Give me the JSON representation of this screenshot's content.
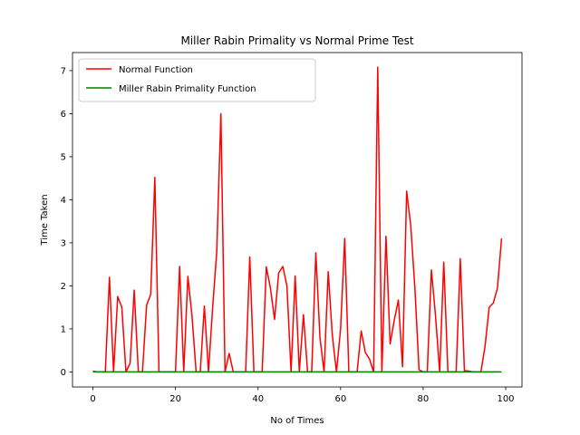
{
  "chart_data": {
    "type": "line",
    "title": "Miller Rabin Primality vs Normal Prime Test",
    "xlabel": "No of Times",
    "ylabel": "Time Taken",
    "xlim": [
      -4.95,
      103.95
    ],
    "ylim": [
      -0.35,
      7.42
    ],
    "xticks": [
      0,
      20,
      40,
      60,
      80,
      100
    ],
    "yticks": [
      0,
      1,
      2,
      3,
      4,
      5,
      6,
      7
    ],
    "legend_position": "upper-left",
    "grid": false,
    "x": [
      0,
      1,
      2,
      3,
      4,
      5,
      6,
      7,
      8,
      9,
      10,
      11,
      12,
      13,
      14,
      15,
      16,
      17,
      18,
      19,
      20,
      21,
      22,
      23,
      24,
      25,
      26,
      27,
      28,
      29,
      30,
      31,
      32,
      33,
      34,
      35,
      36,
      37,
      38,
      39,
      40,
      41,
      42,
      43,
      44,
      45,
      46,
      47,
      48,
      49,
      50,
      51,
      52,
      53,
      54,
      55,
      56,
      57,
      58,
      59,
      60,
      61,
      62,
      63,
      64,
      65,
      66,
      67,
      68,
      69,
      70,
      71,
      72,
      73,
      74,
      75,
      76,
      77,
      78,
      79,
      80,
      81,
      82,
      83,
      84,
      85,
      86,
      87,
      88,
      89,
      90,
      91,
      92,
      93,
      94,
      95,
      96,
      97,
      98,
      99
    ],
    "series": [
      {
        "name": "Normal Function",
        "color": "#ff0000",
        "values": [
          0.02,
          0,
          0,
          0,
          2.2,
          0,
          1.75,
          1.5,
          0,
          0.2,
          1.9,
          0,
          0,
          1.55,
          1.8,
          4.52,
          0,
          0,
          0,
          0,
          0,
          2.45,
          0,
          2.22,
          1.3,
          0,
          0,
          1.53,
          0,
          1.5,
          2.8,
          6.0,
          0,
          0.43,
          0,
          0,
          0,
          0,
          2.67,
          0,
          0,
          0,
          2.44,
          1.95,
          1.22,
          2.3,
          2.45,
          2.0,
          0,
          2.23,
          0,
          1.33,
          0,
          0,
          2.77,
          0.8,
          0,
          2.33,
          0.85,
          0,
          1.0,
          3.1,
          0,
          0,
          0,
          0.95,
          0.45,
          0.3,
          0,
          7.08,
          0,
          3.15,
          0.65,
          1.2,
          1.67,
          0.12,
          4.2,
          3.4,
          1.95,
          0.05,
          0,
          0,
          2.37,
          1.3,
          0,
          2.55,
          0,
          0,
          0,
          2.63,
          0.03,
          0.02,
          0,
          0,
          0,
          0.6,
          1.5,
          1.6,
          1.95,
          3.1
        ]
      },
      {
        "name": "Miller Rabin Primality Function",
        "color": "#008000",
        "values": [
          0,
          0,
          0,
          0,
          0,
          0,
          0,
          0,
          0,
          0,
          0,
          0,
          0,
          0,
          0,
          0,
          0,
          0,
          0,
          0,
          0,
          0,
          0,
          0,
          0,
          0,
          0,
          0,
          0,
          0,
          0,
          0,
          0,
          0,
          0,
          0,
          0,
          0,
          0,
          0,
          0,
          0,
          0,
          0,
          0,
          0,
          0,
          0,
          0,
          0,
          0,
          0,
          0,
          0,
          0,
          0,
          0,
          0,
          0,
          0,
          0,
          0,
          0,
          0,
          0,
          0,
          0,
          0,
          0,
          0,
          0,
          0,
          0,
          0,
          0,
          0,
          0,
          0,
          0,
          0,
          0,
          0,
          0,
          0,
          0,
          0,
          0,
          0,
          0,
          0,
          0,
          0,
          0,
          0,
          0,
          0,
          0,
          0,
          0,
          0
        ]
      }
    ]
  }
}
